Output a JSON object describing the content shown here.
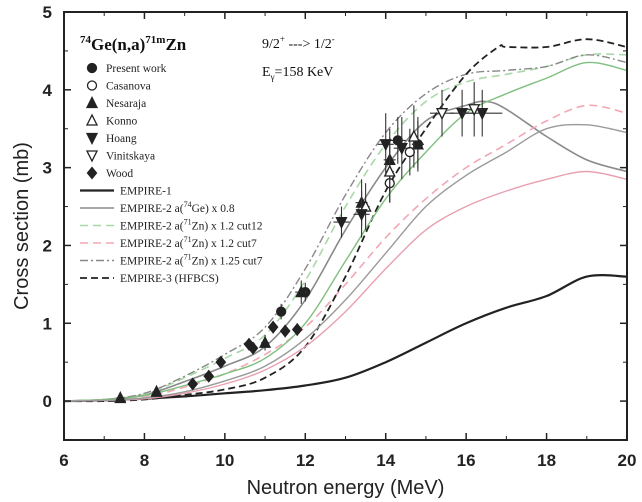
{
  "chart_data": {
    "type": "line",
    "reaction": {
      "pre_sup": "74",
      "base": "Ge(n,a)",
      "sup2": "71m",
      "tail": "Zn"
    },
    "spin": {
      "left": "9/2",
      "left_sup": "+",
      "arrow": " ---> ",
      "right": "1/2",
      "right_sup": "-"
    },
    "gamma_energy": {
      "prefix": "E",
      "sub": "γ",
      "value": "=158 KeV"
    },
    "xlabel": "Neutron energy (MeV)",
    "ylabel": "Cross section (mb)",
    "xlim": [
      6,
      20
    ],
    "ylim": [
      -0.5,
      5
    ],
    "xticks": [
      "6",
      "8",
      "10",
      "12",
      "14",
      "16",
      "18",
      "20"
    ],
    "yticks": [
      "0",
      "1",
      "2",
      "3",
      "4",
      "5"
    ],
    "grid": false,
    "legend_position": "top-left",
    "experimental": [
      {
        "name": "Present work",
        "marker": "circle-filled",
        "points": [
          [
            11.4,
            1.15,
            0.08,
            0.1
          ],
          [
            12.0,
            1.4,
            0.1,
            0.12
          ],
          [
            14.3,
            3.35,
            0.2,
            0.3
          ],
          [
            14.8,
            3.3,
            0.15,
            0.3
          ]
        ]
      },
      {
        "name": "Casanova",
        "marker": "circle-open",
        "points": [
          [
            14.1,
            2.8,
            0.1,
            0.25
          ],
          [
            14.6,
            3.2,
            0.1,
            0.3
          ]
        ]
      },
      {
        "name": "Nesaraja",
        "marker": "triangle-up-filled",
        "points": [
          [
            7.4,
            0.04,
            0.1,
            0.05
          ],
          [
            8.3,
            0.12,
            0.1,
            0.05
          ],
          [
            11.0,
            0.75,
            0.1,
            0.1
          ],
          [
            11.9,
            1.4,
            0.15,
            0.15
          ],
          [
            13.4,
            2.55,
            0.15,
            0.3
          ],
          [
            14.1,
            3.1,
            0.15,
            0.4
          ],
          [
            14.8,
            3.3,
            0.15,
            0.35
          ]
        ]
      },
      {
        "name": "Konno",
        "marker": "triangle-up-open",
        "points": [
          [
            13.5,
            2.5,
            0.1,
            0.3
          ],
          [
            14.1,
            2.95,
            0.1,
            0.4
          ],
          [
            14.7,
            3.4,
            0.1,
            0.4
          ]
        ]
      },
      {
        "name": "Hoang",
        "marker": "triangle-down-filled",
        "points": [
          [
            12.9,
            2.3,
            0.2,
            0.2
          ],
          [
            13.4,
            2.4,
            0.2,
            0.3
          ],
          [
            14.0,
            3.3,
            0.2,
            0.4
          ],
          [
            14.4,
            3.25,
            0.2,
            0.4
          ],
          [
            15.9,
            3.7,
            0.3,
            0.3
          ],
          [
            16.4,
            3.7,
            0.5,
            0.3
          ]
        ]
      },
      {
        "name": "Vinitskaya",
        "marker": "triangle-down-open",
        "points": [
          [
            15.4,
            3.7,
            0.3,
            0.3
          ],
          [
            16.2,
            3.75,
            0.2,
            0.35
          ]
        ]
      },
      {
        "name": "Wood",
        "marker": "diamond-filled",
        "points": [
          [
            9.2,
            0.22,
            0.1,
            0.05
          ],
          [
            9.6,
            0.32,
            0.1,
            0.06
          ],
          [
            9.9,
            0.5,
            0.1,
            0.06
          ],
          [
            10.6,
            0.73,
            0.1,
            0.08
          ],
          [
            10.7,
            0.68,
            0.1,
            0.08
          ],
          [
            11.2,
            0.95,
            0.1,
            0.08
          ],
          [
            11.5,
            0.9,
            0.1,
            0.08
          ],
          [
            11.8,
            0.92,
            0.1,
            0.08
          ]
        ]
      }
    ],
    "series": [
      {
        "name": "EMPIRE-1",
        "color": "#222222",
        "width": 2.2,
        "dash": "",
        "x": [
          6,
          7,
          8,
          9,
          10,
          11,
          12,
          13,
          14,
          15,
          16,
          17,
          18,
          19,
          20
        ],
        "y": [
          0,
          0.01,
          0.03,
          0.06,
          0.1,
          0.14,
          0.2,
          0.3,
          0.5,
          0.75,
          1.0,
          1.2,
          1.35,
          1.6,
          1.6
        ]
      },
      {
        "name": "EMPIRE-2 a(74Ge) x 0.8",
        "label": "EMPIRE-2 a(",
        "sup": "74",
        "label_tail": "Ge) x 0.8",
        "color": "#8a8a8a",
        "width": 1.6,
        "dash": "",
        "x": [
          6,
          7,
          8,
          9,
          10,
          11,
          12,
          13,
          14,
          15,
          16,
          16.5,
          17,
          18,
          19,
          20
        ],
        "y": [
          0,
          0.02,
          0.08,
          0.25,
          0.45,
          0.7,
          1.3,
          2.2,
          3.0,
          3.6,
          3.8,
          3.85,
          3.75,
          3.4,
          3.1,
          2.95
        ]
      },
      {
        "name": "EMPIRE-2 a(71Zn) x 1.2 cut12",
        "label": "EMPIRE-2 a(",
        "sup": "71",
        "label_tail": "Zn) x 1.2 cut12",
        "color": "#a8d8a8",
        "width": 1.6,
        "dash": "8,5",
        "x": [
          6,
          7,
          8,
          9,
          10,
          11,
          12,
          13,
          14,
          15,
          16,
          17,
          18,
          19,
          20
        ],
        "y": [
          0,
          0.02,
          0.09,
          0.3,
          0.55,
          0.85,
          1.55,
          2.5,
          3.3,
          3.85,
          4.1,
          4.2,
          4.3,
          4.45,
          4.45
        ]
      },
      {
        "name": "EMPIRE-2 a(71Zn) x 1.2 cut7",
        "label": "EMPIRE-2 a(",
        "sup": "71",
        "label_tail": "Zn) x 1.2 cut7",
        "color": "#f2a8b4",
        "width": 1.6,
        "dash": "8,5",
        "x": [
          6,
          7,
          8,
          9,
          10,
          11,
          12,
          13,
          14,
          15,
          16,
          17,
          18,
          19,
          20
        ],
        "y": [
          0,
          0.01,
          0.05,
          0.18,
          0.35,
          0.6,
          0.95,
          1.5,
          2.1,
          2.6,
          3.0,
          3.3,
          3.6,
          3.8,
          3.7
        ]
      },
      {
        "name": "EMPIRE-2 a(71Zn) x 1.25 cut7",
        "label": "EMPIRE-2 a(",
        "sup": "71",
        "label_tail": "Zn) x 1.25 cut7",
        "color": "#888888",
        "width": 1.4,
        "dash": "8,3,2,3",
        "x": [
          6,
          7,
          8,
          9,
          10,
          11,
          12,
          13,
          14,
          15,
          16,
          17,
          18,
          19,
          20
        ],
        "y": [
          0,
          0.02,
          0.1,
          0.32,
          0.6,
          0.95,
          1.7,
          2.65,
          3.45,
          3.95,
          4.2,
          4.25,
          4.3,
          4.45,
          4.35
        ]
      },
      {
        "name": "EMPIRE-3 (HFBCS)",
        "color": "#222222",
        "width": 1.8,
        "dash": "7,4",
        "x": [
          6,
          7,
          8,
          9,
          10,
          11,
          12,
          13,
          14,
          15,
          16,
          16.8,
          17,
          18,
          19,
          20
        ],
        "y": [
          0,
          0.0,
          0.02,
          0.08,
          0.15,
          0.3,
          0.7,
          1.6,
          2.7,
          3.5,
          4.2,
          4.55,
          4.55,
          4.55,
          4.65,
          4.55
        ]
      },
      {
        "name": "Green solid",
        "color": "#7fbf7f",
        "width": 1.4,
        "dash": "",
        "x": [
          6,
          7,
          8,
          9,
          10,
          11,
          12,
          13,
          14,
          15,
          16,
          17,
          18,
          19,
          20
        ],
        "y": [
          0,
          0.02,
          0.07,
          0.2,
          0.35,
          0.55,
          1.0,
          1.8,
          2.6,
          3.2,
          3.7,
          3.95,
          4.15,
          4.35,
          4.25
        ]
      },
      {
        "name": "Pink solid",
        "color": "#e8a0b0",
        "width": 1.4,
        "dash": "",
        "x": [
          6,
          7,
          8,
          9,
          10,
          11,
          12,
          13,
          14,
          15,
          16,
          17,
          18,
          19,
          20
        ],
        "y": [
          0,
          0.01,
          0.03,
          0.1,
          0.22,
          0.4,
          0.7,
          1.15,
          1.7,
          2.2,
          2.5,
          2.7,
          2.85,
          2.95,
          2.85
        ]
      },
      {
        "name": "Gray solid",
        "color": "#9a9a9a",
        "width": 1.4,
        "dash": "",
        "x": [
          6,
          7,
          8,
          9,
          10,
          11,
          12,
          13,
          14,
          15,
          16,
          17,
          18,
          19,
          20
        ],
        "y": [
          0,
          0.01,
          0.04,
          0.12,
          0.26,
          0.45,
          0.8,
          1.3,
          1.9,
          2.5,
          2.9,
          3.2,
          3.5,
          3.55,
          3.45
        ]
      }
    ]
  }
}
